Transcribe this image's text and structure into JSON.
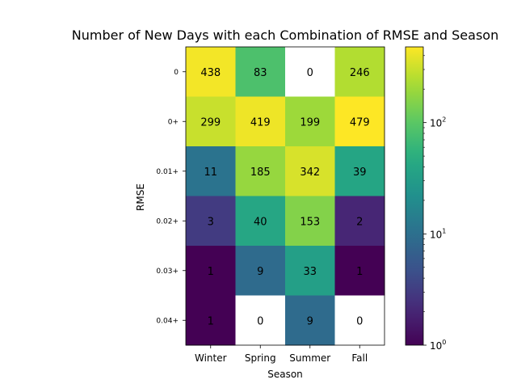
{
  "chart_data": {
    "type": "heatmap",
    "title": "Number of New Days with each Combination of RMSE and Season",
    "xlabel": "Season",
    "ylabel": "RMSE",
    "x_categories": [
      "Winter",
      "Spring",
      "Summer",
      "Fall"
    ],
    "y_categories": [
      "0",
      "0+",
      "0.01+",
      "0.02+",
      "0.03+",
      "0.04+"
    ],
    "values": [
      [
        438,
        83,
        0,
        246
      ],
      [
        299,
        419,
        199,
        479
      ],
      [
        11,
        185,
        342,
        39
      ],
      [
        3,
        40,
        153,
        2
      ],
      [
        1,
        9,
        33,
        1
      ],
      [
        1,
        0,
        9,
        0
      ]
    ],
    "color_scale": "log",
    "colormap": "viridis",
    "zero_color": "#ffffff",
    "colorbar": {
      "range": [
        1,
        479
      ],
      "ticks": [
        {
          "value": 1,
          "base": "10",
          "exp": "0"
        },
        {
          "value": 10,
          "base": "10",
          "exp": "1"
        },
        {
          "value": 100,
          "base": "10",
          "exp": "2"
        }
      ]
    }
  }
}
